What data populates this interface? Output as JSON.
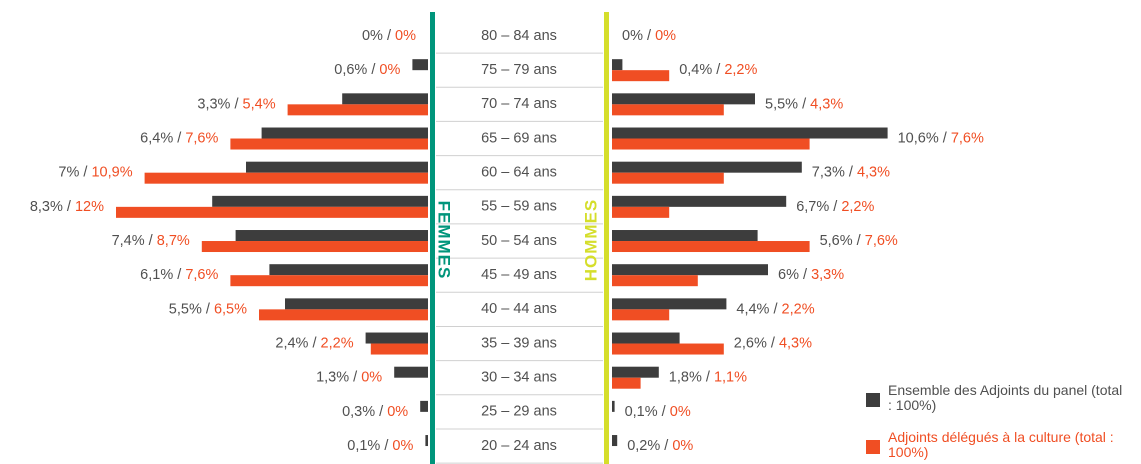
{
  "chart_data": {
    "type": "pyramid",
    "categories": [
      "80 – 84 ans",
      "75 – 79 ans",
      "70 – 74 ans",
      "65 – 69 ans",
      "60 – 64 ans",
      "55 – 59 ans",
      "50 – 54 ans",
      "45 – 49 ans",
      "40 – 44 ans",
      "35 – 39 ans",
      "30 – 34 ans",
      "25 – 29 ans",
      "20 – 24 ans"
    ],
    "separator": " / ",
    "legend": [
      {
        "name": "Ensemble des Adjoints du panel (total : 100%)",
        "color": "#3d3d3d"
      },
      {
        "name": "Adjoints délégués à la culture (total : 100%)",
        "color": "#f04e23"
      }
    ],
    "sides": [
      {
        "label": "FEMMES",
        "color": "#00957b",
        "series": [
          {
            "values": [
              0,
              0.6,
              3.3,
              6.4,
              7,
              8.3,
              7.4,
              6.1,
              5.5,
              2.4,
              1.3,
              0.3,
              0.1
            ],
            "value_labels": [
              "0%",
              "0,6%",
              "3,3%",
              "6,4%",
              "7%",
              "8,3%",
              "7,4%",
              "6,1%",
              "5,5%",
              "2,4%",
              "1,3%",
              "0,3%",
              "0,1%"
            ]
          },
          {
            "values": [
              0,
              0,
              5.4,
              7.6,
              10.9,
              12,
              8.7,
              7.6,
              6.5,
              2.2,
              0,
              0,
              0
            ],
            "value_labels": [
              "0%",
              "0%",
              "5,4%",
              "7,6%",
              "10,9%",
              "12%",
              "8,7%",
              "7,6%",
              "6,5%",
              "2,2%",
              "0%",
              "0%",
              "0%"
            ]
          }
        ]
      },
      {
        "label": "HOMMES",
        "color": "#d5de2b",
        "series": [
          {
            "values": [
              0,
              0.4,
              5.5,
              10.6,
              7.3,
              6.7,
              5.6,
              6,
              4.4,
              2.6,
              1.8,
              0.1,
              0.2
            ],
            "value_labels": [
              "0%",
              "0,4%",
              "5,5%",
              "10,6%",
              "7,3%",
              "6,7%",
              "5,6%",
              "6%",
              "4,4%",
              "2,6%",
              "1,8%",
              "0,1%",
              "0,2%"
            ]
          },
          {
            "values": [
              0,
              2.2,
              4.3,
              7.6,
              4.3,
              2.2,
              7.6,
              3.3,
              2.2,
              4.3,
              1.1,
              0,
              0
            ],
            "value_labels": [
              "0%",
              "2,2%",
              "4,3%",
              "7,6%",
              "4,3%",
              "2,2%",
              "7,6%",
              "3,3%",
              "2,2%",
              "4,3%",
              "1,1%",
              "0%",
              "0%"
            ]
          }
        ]
      }
    ]
  }
}
